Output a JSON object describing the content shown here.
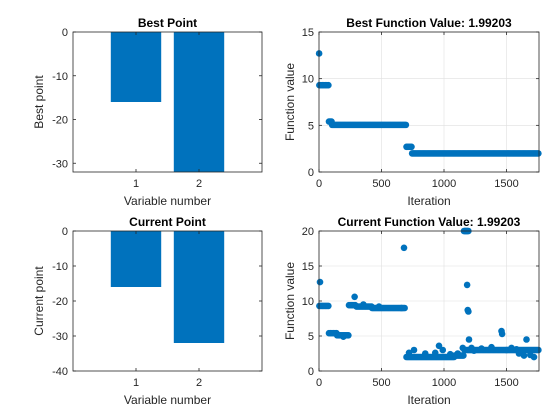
{
  "colors": {
    "bar": "#0072bd",
    "marker": "#0072bd",
    "axis": "#262626",
    "grid": "#dfdfdf",
    "background": "#ffffff"
  },
  "chart_data": [
    {
      "id": "best-point",
      "type": "bar",
      "title": "Best Point",
      "xlabel": "Variable number",
      "ylabel": "Best point",
      "categories": [
        "1",
        "2"
      ],
      "values": [
        -16,
        -32
      ],
      "xlim": [
        0,
        3
      ],
      "ylim": [
        -32,
        0
      ],
      "yticks": [
        0,
        -10,
        -20,
        -30
      ],
      "yticklabels": [
        "0",
        "-10",
        "-20",
        "-30"
      ],
      "grid": false
    },
    {
      "id": "best-function-value",
      "type": "scatter",
      "title": "Best Function Value: 1.99203",
      "xlabel": "Iteration",
      "ylabel": "Function value",
      "xlim": [
        0,
        1760
      ],
      "ylim": [
        0,
        15
      ],
      "xticks": [
        0,
        500,
        1000,
        1500
      ],
      "xticklabels": [
        "0",
        "500",
        "1000",
        "1500"
      ],
      "yticks": [
        0,
        5,
        10,
        15
      ],
      "yticklabels": [
        "0",
        "5",
        "10",
        "15"
      ],
      "grid": true,
      "segments": [
        {
          "x_start": 1,
          "x_end": 1,
          "step": 1,
          "y": 12.7
        },
        {
          "x_start": 3,
          "x_end": 75,
          "step": 12,
          "y": 9.3
        },
        {
          "x_start": 80,
          "x_end": 100,
          "step": 10,
          "y": 5.4
        },
        {
          "x_start": 105,
          "x_end": 695,
          "step": 10,
          "y": 5.05
        },
        {
          "x_start": 700,
          "x_end": 740,
          "step": 10,
          "y": 2.7
        },
        {
          "x_start": 745,
          "x_end": 1755,
          "step": 10,
          "y": 1.99203
        }
      ]
    },
    {
      "id": "current-point",
      "type": "bar",
      "title": "Current Point",
      "xlabel": "Variable number",
      "ylabel": "Current point",
      "categories": [
        "1",
        "2"
      ],
      "values": [
        -16,
        -32
      ],
      "xlim": [
        0,
        3
      ],
      "ylim": [
        -40,
        0
      ],
      "yticks": [
        0,
        -10,
        -20,
        -30,
        -40
      ],
      "yticklabels": [
        "0",
        "-10",
        "-20",
        "-30",
        "-40"
      ],
      "grid": false
    },
    {
      "id": "current-function-value",
      "type": "scatter",
      "title": "Current Function Value: 1.99203",
      "xlabel": "Iteration",
      "ylabel": "Function value",
      "xlim": [
        0,
        1760
      ],
      "ylim": [
        0,
        20
      ],
      "xticks": [
        0,
        500,
        1000,
        1500
      ],
      "xticklabels": [
        "0",
        "500",
        "1000",
        "1500"
      ],
      "yticks": [
        0,
        5,
        10,
        15,
        20
      ],
      "yticklabels": [
        "0",
        "5",
        "10",
        "15",
        "20"
      ],
      "grid": true,
      "segments": [
        {
          "x_start": 3,
          "x_end": 75,
          "step": 12,
          "y": 9.3
        },
        {
          "x_start": 80,
          "x_end": 140,
          "step": 12,
          "y": 5.4
        },
        {
          "x_start": 145,
          "x_end": 235,
          "step": 10,
          "y": 5.1
        },
        {
          "x_start": 240,
          "x_end": 290,
          "step": 10,
          "y": 9.4
        },
        {
          "x_start": 300,
          "x_end": 420,
          "step": 12,
          "y": 9.2
        },
        {
          "x_start": 425,
          "x_end": 690,
          "step": 10,
          "y": 9.0
        },
        {
          "x_start": 700,
          "x_end": 1080,
          "step": 10,
          "y": 2.0
        },
        {
          "x_start": 1085,
          "x_end": 1155,
          "step": 10,
          "y": 2.2
        },
        {
          "x_start": 1165,
          "x_end": 1755,
          "step": 10,
          "y": 3.0
        }
      ],
      "points": [
        [
          8,
          12.7
        ],
        [
          195,
          4.9
        ],
        [
          285,
          10.6
        ],
        [
          355,
          9.5
        ],
        [
          480,
          9.2
        ],
        [
          660,
          9.0
        ],
        [
          680,
          17.6
        ],
        [
          720,
          2.6
        ],
        [
          760,
          3.0
        ],
        [
          850,
          2.5
        ],
        [
          930,
          2.6
        ],
        [
          960,
          3.6
        ],
        [
          990,
          3.0
        ],
        [
          1050,
          2.4
        ],
        [
          1110,
          2.5
        ],
        [
          1150,
          3.3
        ],
        [
          1160,
          20
        ],
        [
          1165,
          20
        ],
        [
          1170,
          20
        ],
        [
          1175,
          20
        ],
        [
          1180,
          20
        ],
        [
          1185,
          20
        ],
        [
          1190,
          20
        ],
        [
          1195,
          20
        ],
        [
          1185,
          12.3
        ],
        [
          1190,
          8.7
        ],
        [
          1195,
          8.5
        ],
        [
          1200,
          4.5
        ],
        [
          1220,
          3.3
        ],
        [
          1240,
          2.9
        ],
        [
          1300,
          3.2
        ],
        [
          1380,
          3.4
        ],
        [
          1460,
          5.7
        ],
        [
          1465,
          5.3
        ],
        [
          1500,
          3.0
        ],
        [
          1540,
          3.3
        ],
        [
          1580,
          3.1
        ],
        [
          1600,
          2.5
        ],
        [
          1640,
          2.2
        ],
        [
          1660,
          4.5
        ],
        [
          1690,
          2.3
        ],
        [
          1720,
          1.99
        ]
      ]
    }
  ]
}
